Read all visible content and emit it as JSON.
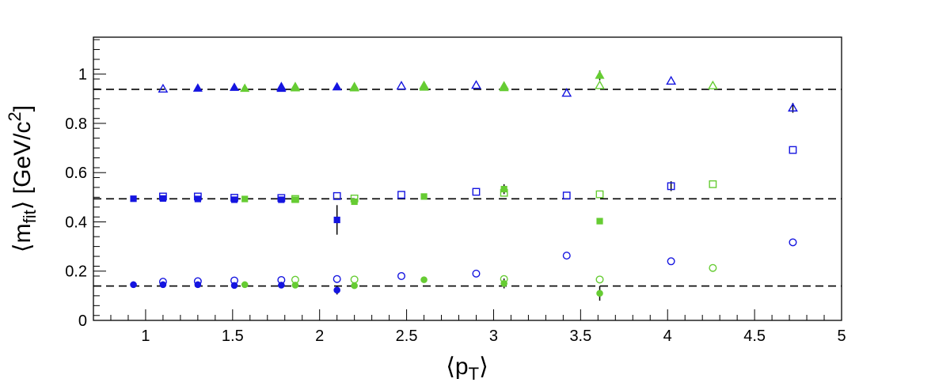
{
  "chart_data": {
    "type": "scatter",
    "xlabel": "⟨p_T⟩",
    "ylabel": "⟨m_fit⟩ [GeV/c^2]",
    "xlim": [
      0.7,
      5.0
    ],
    "ylim": [
      0.0,
      1.15
    ],
    "x_ticks": [
      "1",
      "1.5",
      "2",
      "2.5",
      "3",
      "3.5",
      "4",
      "4.5",
      "5"
    ],
    "x_tick_values": [
      1,
      1.5,
      2,
      2.5,
      3,
      3.5,
      4,
      4.5,
      5
    ],
    "y_ticks": [
      "0",
      "0.2",
      "0.4",
      "0.6",
      "0.8",
      "1"
    ],
    "y_tick_values": [
      0,
      0.2,
      0.4,
      0.6,
      0.8,
      1.0
    ],
    "grid": false,
    "reference_lines": [
      0.1396,
      0.4937,
      0.9383
    ],
    "colors": {
      "blue": "#1515e0",
      "green": "#66cc33",
      "reference": "#000000"
    },
    "series": [
      {
        "color": "blue",
        "marker": "circle-filled",
        "points": [
          [
            0.93,
            0.145,
            0.004
          ],
          [
            1.1,
            0.145,
            0.004
          ],
          [
            1.3,
            0.145,
            0.004
          ],
          [
            1.51,
            0.142,
            0.004
          ],
          [
            1.78,
            0.143,
            0.004
          ],
          [
            2.1,
            0.123,
            0.018
          ]
        ]
      },
      {
        "color": "blue",
        "marker": "circle-open",
        "points": [
          [
            1.1,
            0.157,
            0.004
          ],
          [
            1.3,
            0.159,
            0.004
          ],
          [
            1.51,
            0.162,
            0.004
          ],
          [
            1.78,
            0.164,
            0.004
          ],
          [
            2.1,
            0.168,
            0.004
          ],
          [
            2.47,
            0.18,
            0.004
          ],
          [
            2.9,
            0.19,
            0.004
          ],
          [
            3.42,
            0.263,
            0.004
          ],
          [
            4.02,
            0.24,
            0.004
          ],
          [
            4.72,
            0.317,
            0.004
          ]
        ]
      },
      {
        "color": "green",
        "marker": "circle-filled",
        "points": [
          [
            1.57,
            0.145,
            0.004
          ],
          [
            1.86,
            0.143,
            0.004
          ],
          [
            2.2,
            0.141,
            0.004
          ],
          [
            2.6,
            0.165,
            0.004
          ],
          [
            3.06,
            0.15,
            0.02
          ],
          [
            3.61,
            0.11,
            0.03
          ]
        ]
      },
      {
        "color": "green",
        "marker": "circle-open",
        "points": [
          [
            1.86,
            0.165,
            0.004
          ],
          [
            2.2,
            0.166,
            0.004
          ],
          [
            3.06,
            0.168,
            0.004
          ],
          [
            3.61,
            0.166,
            0.004
          ],
          [
            4.26,
            0.213,
            0.004
          ]
        ]
      },
      {
        "color": "blue",
        "marker": "square-filled",
        "points": [
          [
            0.93,
            0.494,
            0.004
          ],
          [
            1.1,
            0.495,
            0.004
          ],
          [
            1.3,
            0.493,
            0.004
          ],
          [
            1.51,
            0.49,
            0.004
          ],
          [
            1.78,
            0.49,
            0.004
          ],
          [
            2.1,
            0.408,
            0.06
          ]
        ]
      },
      {
        "color": "blue",
        "marker": "square-open",
        "points": [
          [
            1.1,
            0.503,
            0.004
          ],
          [
            1.3,
            0.503,
            0.004
          ],
          [
            1.51,
            0.498,
            0.004
          ],
          [
            1.78,
            0.497,
            0.004
          ],
          [
            2.1,
            0.505,
            0.004
          ],
          [
            2.47,
            0.51,
            0.004
          ],
          [
            2.9,
            0.522,
            0.004
          ],
          [
            3.42,
            0.507,
            0.004
          ],
          [
            4.02,
            0.545,
            0.02
          ],
          [
            4.72,
            0.692,
            0.004
          ]
        ]
      },
      {
        "color": "green",
        "marker": "square-filled",
        "points": [
          [
            1.57,
            0.493,
            0.004
          ],
          [
            1.86,
            0.49,
            0.004
          ],
          [
            2.2,
            0.482,
            0.004
          ],
          [
            2.6,
            0.503,
            0.004
          ],
          [
            3.06,
            0.533,
            0.02
          ],
          [
            3.61,
            0.403,
            0.004
          ]
        ]
      },
      {
        "color": "green",
        "marker": "square-open",
        "points": [
          [
            1.86,
            0.493,
            0.004
          ],
          [
            2.2,
            0.495,
            0.004
          ],
          [
            3.06,
            0.518,
            0.004
          ],
          [
            3.61,
            0.512,
            0.004
          ],
          [
            4.26,
            0.553,
            0.004
          ]
        ]
      },
      {
        "color": "blue",
        "marker": "triangle-filled",
        "points": [
          [
            1.3,
            0.943,
            0.004
          ],
          [
            1.51,
            0.946,
            0.004
          ],
          [
            1.78,
            0.942,
            0.004
          ],
          [
            2.1,
            0.948,
            0.004
          ]
        ]
      },
      {
        "color": "blue",
        "marker": "triangle-open",
        "points": [
          [
            1.1,
            0.94,
            0.004
          ],
          [
            1.78,
            0.948,
            0.004
          ],
          [
            2.47,
            0.952,
            0.004
          ],
          [
            2.9,
            0.955,
            0.004
          ],
          [
            3.42,
            0.923,
            0.004
          ],
          [
            4.02,
            0.972,
            0.004
          ],
          [
            4.72,
            0.863,
            0.02
          ]
        ]
      },
      {
        "color": "green",
        "marker": "triangle-filled",
        "points": [
          [
            1.57,
            0.942,
            0.004
          ],
          [
            1.86,
            0.944,
            0.004
          ],
          [
            2.2,
            0.944,
            0.004
          ],
          [
            2.6,
            0.947,
            0.004
          ],
          [
            3.06,
            0.945,
            0.004
          ],
          [
            3.61,
            0.995,
            0.02
          ]
        ]
      },
      {
        "color": "green",
        "marker": "triangle-open",
        "points": [
          [
            1.86,
            0.948,
            0.004
          ],
          [
            2.2,
            0.948,
            0.004
          ],
          [
            2.6,
            0.953,
            0.004
          ],
          [
            3.06,
            0.951,
            0.004
          ],
          [
            3.61,
            0.954,
            0.004
          ],
          [
            4.26,
            0.953,
            0.004
          ]
        ]
      }
    ]
  }
}
